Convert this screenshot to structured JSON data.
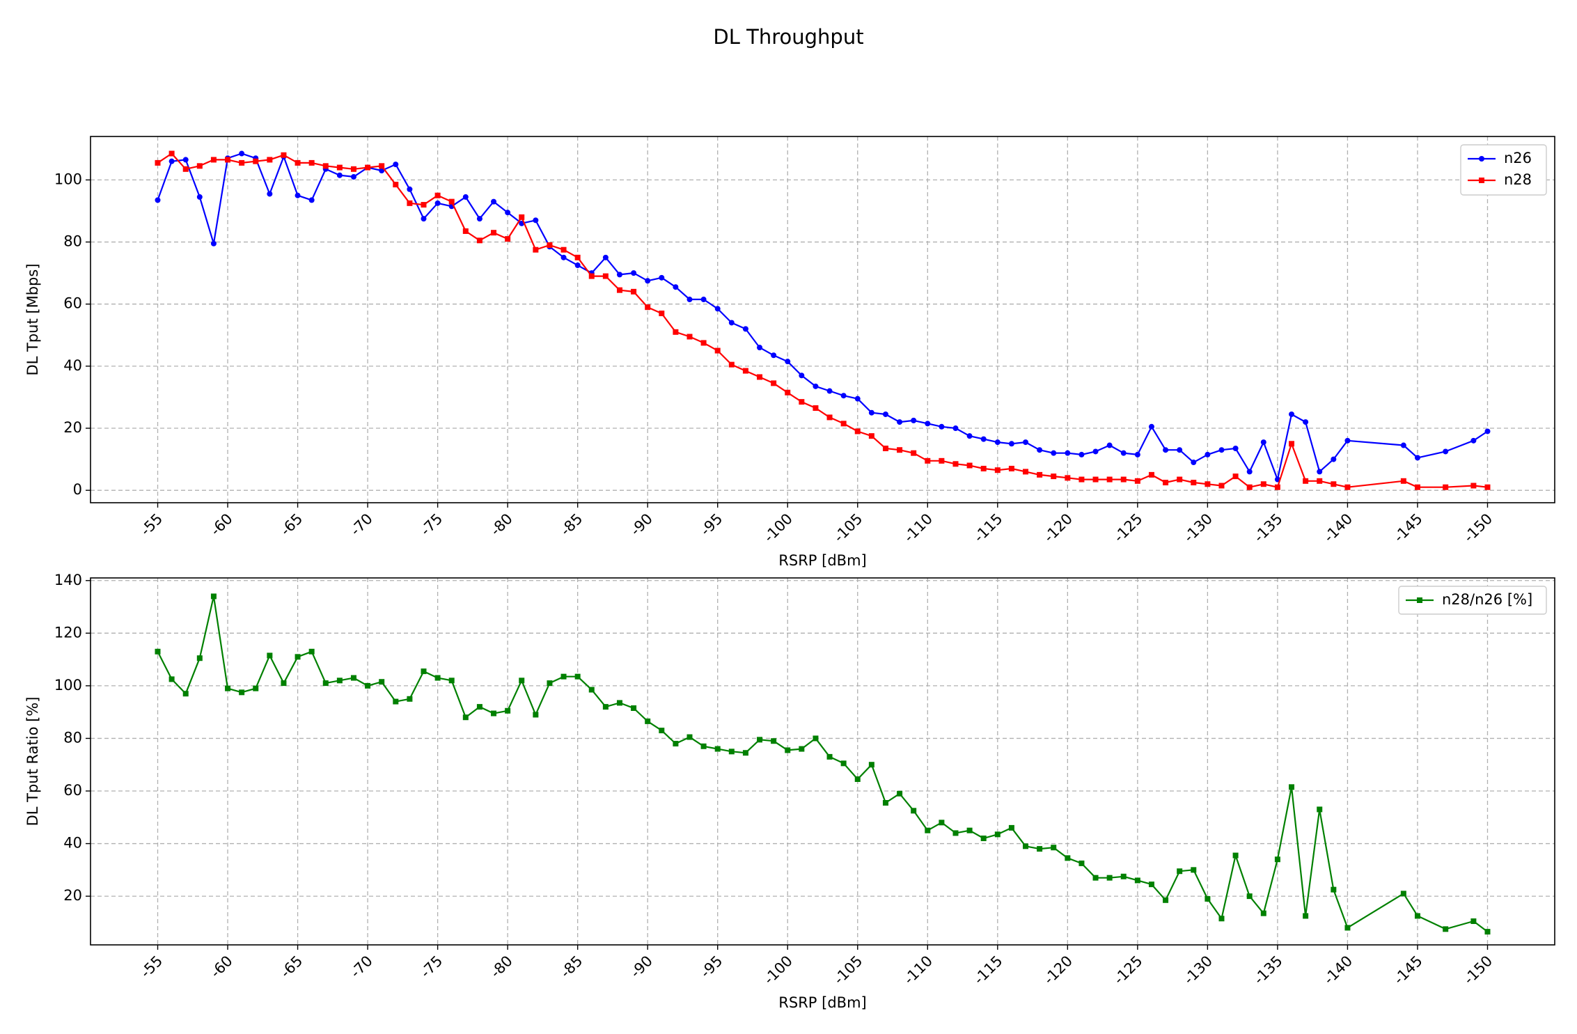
{
  "title": "DL Throughput",
  "chart_data": [
    {
      "type": "line",
      "xlabel": "RSRP [dBm]",
      "ylabel": "DL Tput [Mbps]",
      "xlim": [
        -50.2,
        -154.8
      ],
      "ylim": [
        -4,
        114
      ],
      "xticks": [
        -55,
        -60,
        -65,
        -70,
        -75,
        -80,
        -85,
        -90,
        -95,
        -100,
        -105,
        -110,
        -115,
        -120,
        -125,
        -130,
        -135,
        -140,
        -145,
        -150
      ],
      "xtick_labels": [
        "-55",
        "-60",
        "-65",
        "-70",
        "-75",
        "-80",
        "-85",
        "-90",
        "-95",
        "-100",
        "-105",
        "-110",
        "-115",
        "-120",
        "-125",
        "-130",
        "-135",
        "-140",
        "-145",
        "-150"
      ],
      "yticks": [
        0,
        20,
        40,
        60,
        80,
        100
      ],
      "ytick_labels": [
        "0",
        "20",
        "40",
        "60",
        "80",
        "100"
      ],
      "grid": true,
      "legend": "top-right",
      "series": [
        {
          "name": "n26",
          "color": "#0000ff",
          "marker": "circle",
          "x": [
            -55,
            -56,
            -57,
            -58,
            -59,
            -60,
            -61,
            -62,
            -63,
            -64,
            -65,
            -66,
            -67,
            -68,
            -69,
            -70,
            -71,
            -72,
            -73,
            -74,
            -75,
            -76,
            -77,
            -78,
            -79,
            -80,
            -81,
            -82,
            -83,
            -84,
            -85,
            -86,
            -87,
            -88,
            -89,
            -90,
            -91,
            -92,
            -93,
            -94,
            -95,
            -96,
            -97,
            -98,
            -99,
            -100,
            -101,
            -102,
            -103,
            -104,
            -105,
            -106,
            -107,
            -108,
            -109,
            -110,
            -111,
            -112,
            -113,
            -114,
            -115,
            -116,
            -117,
            -118,
            -119,
            -120,
            -121,
            -122,
            -123,
            -124,
            -125,
            -126,
            -127,
            -128,
            -129,
            -130,
            -131,
            -132,
            -133,
            -134,
            -135,
            -136,
            -137,
            -138,
            -139,
            -140,
            -144,
            -145,
            -147,
            -149,
            -150
          ],
          "y": [
            93.5,
            106,
            106.5,
            94.5,
            79.5,
            107,
            108.5,
            107,
            95.5,
            107.5,
            95,
            93.5,
            103.5,
            101.5,
            101,
            104,
            103,
            105,
            97,
            87.5,
            92.5,
            91.5,
            94.5,
            87.5,
            93,
            89.5,
            86,
            87,
            78.5,
            75,
            72.5,
            70,
            75,
            69.5,
            70,
            67.5,
            68.5,
            65.5,
            61.5,
            61.5,
            58.5,
            54,
            52,
            46,
            43.5,
            41.5,
            37,
            33.5,
            32,
            30.5,
            29.5,
            25,
            24.5,
            22,
            22.5,
            21.5,
            20.5,
            20,
            17.5,
            16.5,
            15.5,
            15,
            15.5,
            13,
            12,
            12,
            11.5,
            12.5,
            14.5,
            12,
            11.5,
            20.5,
            13,
            13,
            9,
            11.5,
            13,
            13.5,
            6,
            15.5,
            3.5,
            24.5,
            22,
            6,
            10,
            16,
            14.5,
            10.5,
            12.5,
            16,
            19
          ]
        },
        {
          "name": "n28",
          "color": "#ff0000",
          "marker": "square",
          "x": [
            -55,
            -56,
            -57,
            -58,
            -59,
            -60,
            -61,
            -62,
            -63,
            -64,
            -65,
            -66,
            -67,
            -68,
            -69,
            -70,
            -71,
            -72,
            -73,
            -74,
            -75,
            -76,
            -77,
            -78,
            -79,
            -80,
            -81,
            -82,
            -83,
            -84,
            -85,
            -86,
            -87,
            -88,
            -89,
            -90,
            -91,
            -92,
            -93,
            -94,
            -95,
            -96,
            -97,
            -98,
            -99,
            -100,
            -101,
            -102,
            -103,
            -104,
            -105,
            -106,
            -107,
            -108,
            -109,
            -110,
            -111,
            -112,
            -113,
            -114,
            -115,
            -116,
            -117,
            -118,
            -119,
            -120,
            -121,
            -122,
            -123,
            -124,
            -125,
            -126,
            -127,
            -128,
            -129,
            -130,
            -131,
            -132,
            -133,
            -134,
            -135,
            -136,
            -137,
            -138,
            -139,
            -140,
            -144,
            -145,
            -147,
            -149,
            -150
          ],
          "y": [
            105.5,
            108.5,
            103.5,
            104.5,
            106.5,
            106.5,
            105.5,
            106,
            106.5,
            108,
            105.5,
            105.5,
            104.5,
            104,
            103.5,
            104,
            104.5,
            98.5,
            92.5,
            92,
            95,
            93,
            83.5,
            80.5,
            83,
            81,
            88,
            77.5,
            79,
            77.5,
            75,
            69,
            69,
            64.5,
            64,
            59,
            57,
            51,
            49.5,
            47.5,
            45,
            40.5,
            38.5,
            36.5,
            34.5,
            31.5,
            28.5,
            26.5,
            23.5,
            21.5,
            19,
            17.5,
            13.5,
            13,
            12,
            9.5,
            9.5,
            8.5,
            8,
            7,
            6.5,
            7,
            6,
            5,
            4.5,
            4,
            3.5,
            3.5,
            3.5,
            3.5,
            3,
            5,
            2.5,
            3.5,
            2.5,
            2,
            1.5,
            4.5,
            1,
            2,
            1,
            15,
            3,
            3,
            2,
            1,
            3,
            1,
            1,
            1.5,
            1
          ]
        }
      ]
    },
    {
      "type": "line",
      "xlabel": "RSRP [dBm]",
      "ylabel": "DL Tput Ratio [%]",
      "xlim": [
        -50.2,
        -154.8
      ],
      "ylim": [
        1.5,
        141
      ],
      "xticks": [
        -55,
        -60,
        -65,
        -70,
        -75,
        -80,
        -85,
        -90,
        -95,
        -100,
        -105,
        -110,
        -115,
        -120,
        -125,
        -130,
        -135,
        -140,
        -145,
        -150
      ],
      "xtick_labels": [
        "-55",
        "-60",
        "-65",
        "-70",
        "-75",
        "-80",
        "-85",
        "-90",
        "-95",
        "-100",
        "-105",
        "-110",
        "-115",
        "-120",
        "-125",
        "-130",
        "-135",
        "-140",
        "-145",
        "-150"
      ],
      "yticks": [
        20,
        40,
        60,
        80,
        100,
        120,
        140
      ],
      "ytick_labels": [
        "20",
        "40",
        "60",
        "80",
        "100",
        "120",
        "140"
      ],
      "grid": true,
      "legend": "top-right",
      "series": [
        {
          "name": "n28/n26 [%]",
          "color": "#008000",
          "marker": "square",
          "x": [
            -55,
            -56,
            -57,
            -58,
            -59,
            -60,
            -61,
            -62,
            -63,
            -64,
            -65,
            -66,
            -67,
            -68,
            -69,
            -70,
            -71,
            -72,
            -73,
            -74,
            -75,
            -76,
            -77,
            -78,
            -79,
            -80,
            -81,
            -82,
            -83,
            -84,
            -85,
            -86,
            -87,
            -88,
            -89,
            -90,
            -91,
            -92,
            -93,
            -94,
            -95,
            -96,
            -97,
            -98,
            -99,
            -100,
            -101,
            -102,
            -103,
            -104,
            -105,
            -106,
            -107,
            -108,
            -109,
            -110,
            -111,
            -112,
            -113,
            -114,
            -115,
            -116,
            -117,
            -118,
            -119,
            -120,
            -121,
            -122,
            -123,
            -124,
            -125,
            -126,
            -127,
            -128,
            -129,
            -130,
            -131,
            -132,
            -133,
            -134,
            -135,
            -136,
            -137,
            -138,
            -139,
            -140,
            -144,
            -145,
            -147,
            -149,
            -150
          ],
          "y": [
            113,
            102.5,
            97,
            110.5,
            134,
            99,
            97.5,
            99,
            111.5,
            101,
            111,
            113,
            101,
            102,
            103,
            100,
            101.5,
            94,
            95,
            105.5,
            103,
            102,
            88,
            92,
            89.5,
            90.5,
            102,
            89,
            101,
            103.5,
            103.5,
            98.5,
            92,
            93.5,
            91.5,
            86.5,
            83,
            78,
            80.5,
            77,
            76,
            75,
            74.5,
            79.5,
            79,
            75.5,
            76,
            80,
            73,
            70.5,
            64.5,
            70,
            55.5,
            59,
            52.5,
            45,
            48,
            44,
            45,
            42,
            43.5,
            46,
            39,
            38,
            38.5,
            34.5,
            32.5,
            27,
            27,
            27.5,
            26,
            24.5,
            18.5,
            29.5,
            30,
            19,
            11.5,
            35.5,
            20,
            13.5,
            34,
            61.5,
            12.5,
            53,
            22.5,
            8,
            21,
            12.5,
            7.5,
            10.5,
            6.5
          ]
        }
      ]
    }
  ]
}
